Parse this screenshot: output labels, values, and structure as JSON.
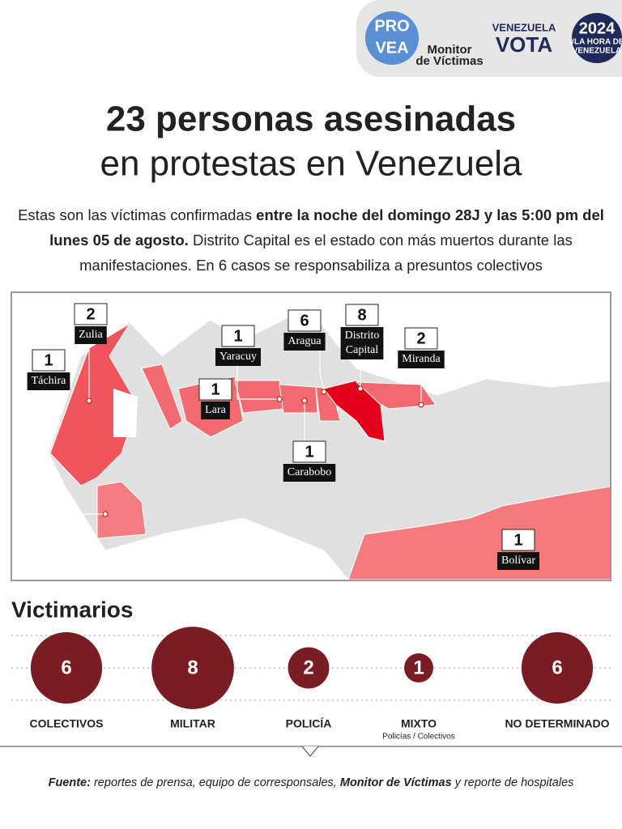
{
  "logos": [
    {
      "lines": [
        "PRO",
        "VEA"
      ]
    },
    {
      "lines": [
        "Monitor",
        "de Víctimas"
      ]
    },
    {
      "lines": [
        "VENEZUELA",
        "VOTA"
      ]
    },
    {
      "lines": [
        "2024",
        "#LA HORA DE",
        "VENEZUELA"
      ]
    }
  ],
  "title": {
    "line1": "23 personas asesinadas",
    "line2": "en protestas en Venezuela"
  },
  "intro": [
    {
      "text": "Estas son las víctimas confirmadas ",
      "bold": false
    },
    {
      "text": "entre la noche del domingo 28J y las 5:00 pm del lunes 05 de agosto.",
      "bold": true
    },
    {
      "text": " Distrito Capital es el estado con más muertos durante las manifestaciones. En 6 casos se responsabiliza a presuntos colectivos",
      "bold": false
    }
  ],
  "map": {
    "states": [
      {
        "name": [
          "Zulia"
        ],
        "count": 2
      },
      {
        "name": [
          "Táchira"
        ],
        "count": 1
      },
      {
        "name": [
          "Yaracuy"
        ],
        "count": 1
      },
      {
        "name": [
          "Lara"
        ],
        "count": 1
      },
      {
        "name": [
          "Aragua"
        ],
        "count": 6
      },
      {
        "name": [
          "Distrito",
          "Capital"
        ],
        "count": 8
      },
      {
        "name": [
          "Miranda"
        ],
        "count": 2
      },
      {
        "name": [
          "Carabobo"
        ],
        "count": 1
      },
      {
        "name": [
          "Bolívar"
        ],
        "count": 1
      }
    ]
  },
  "victimarios": {
    "title": "Victimarios",
    "groups": [
      {
        "label": "COLECTIVOS",
        "count": 6
      },
      {
        "label": "MILITAR",
        "count": 8
      },
      {
        "label": "POLICÍA",
        "count": 2
      },
      {
        "label": "MIXTO",
        "sublabel": "Policías / Colectivos",
        "count": 1
      },
      {
        "label": "NO DETERMINADO",
        "count": 6
      }
    ]
  },
  "source": [
    {
      "text": "Fuente:",
      "bold": true
    },
    {
      "text": " reportes de prensa, equipo de corresponsales, ",
      "bold": false
    },
    {
      "text": " Monitor de Víctimas",
      "bold": true
    },
    {
      "text": " y reporte de hospitales",
      "bold": false
    }
  ]
}
